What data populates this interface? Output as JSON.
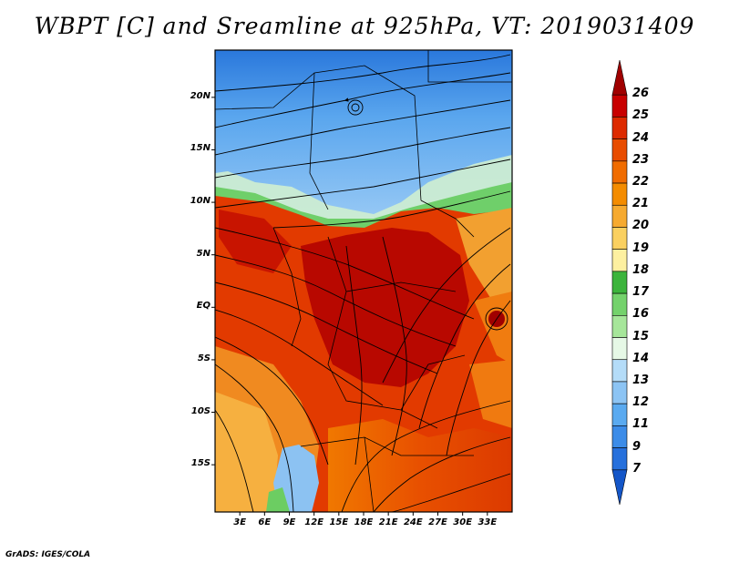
{
  "title": "WBPT [C] and Sreamline at 925hPa, VT: 2019031409",
  "footer": "GrADS: IGES/COLA",
  "map": {
    "lon_range": [
      0,
      36
    ],
    "lat_range": [
      -19.5,
      24.5
    ],
    "y_ticks": [
      {
        "label": "20N",
        "lat": 20
      },
      {
        "label": "15N",
        "lat": 15
      },
      {
        "label": "10N",
        "lat": 10
      },
      {
        "label": "5N",
        "lat": 5
      },
      {
        "label": "EQ",
        "lat": 0
      },
      {
        "label": "5S",
        "lat": -5
      },
      {
        "label": "10S",
        "lat": -10
      },
      {
        "label": "15S",
        "lat": -15
      }
    ],
    "x_ticks": [
      {
        "label": "3E",
        "lon": 3
      },
      {
        "label": "6E",
        "lon": 6
      },
      {
        "label": "9E",
        "lon": 9
      },
      {
        "label": "12E",
        "lon": 12
      },
      {
        "label": "15E",
        "lon": 15
      },
      {
        "label": "18E",
        "lon": 18
      },
      {
        "label": "21E",
        "lon": 21
      },
      {
        "label": "24E",
        "lon": 24
      },
      {
        "label": "27E",
        "lon": 27
      },
      {
        "label": "30E",
        "lon": 30
      },
      {
        "label": "33E",
        "lon": 33
      }
    ]
  },
  "colorbar": {
    "levels": [
      "26",
      "25",
      "24",
      "23",
      "22",
      "21",
      "20",
      "19",
      "18",
      "17",
      "16",
      "15",
      "14",
      "13",
      "12",
      "11",
      "9",
      "7"
    ],
    "colors": [
      "#a00000",
      "#c80000",
      "#dd2a00",
      "#e84c00",
      "#f06c00",
      "#f48c00",
      "#f6aa30",
      "#fad060",
      "#fdf0a0",
      "#3cb43c",
      "#74d26c",
      "#a6e69a",
      "#e6f8e6",
      "#b4dcf8",
      "#8cc4f4",
      "#5aaaf0",
      "#3c8ce8",
      "#2670dc",
      "#1456c8"
    ]
  }
}
